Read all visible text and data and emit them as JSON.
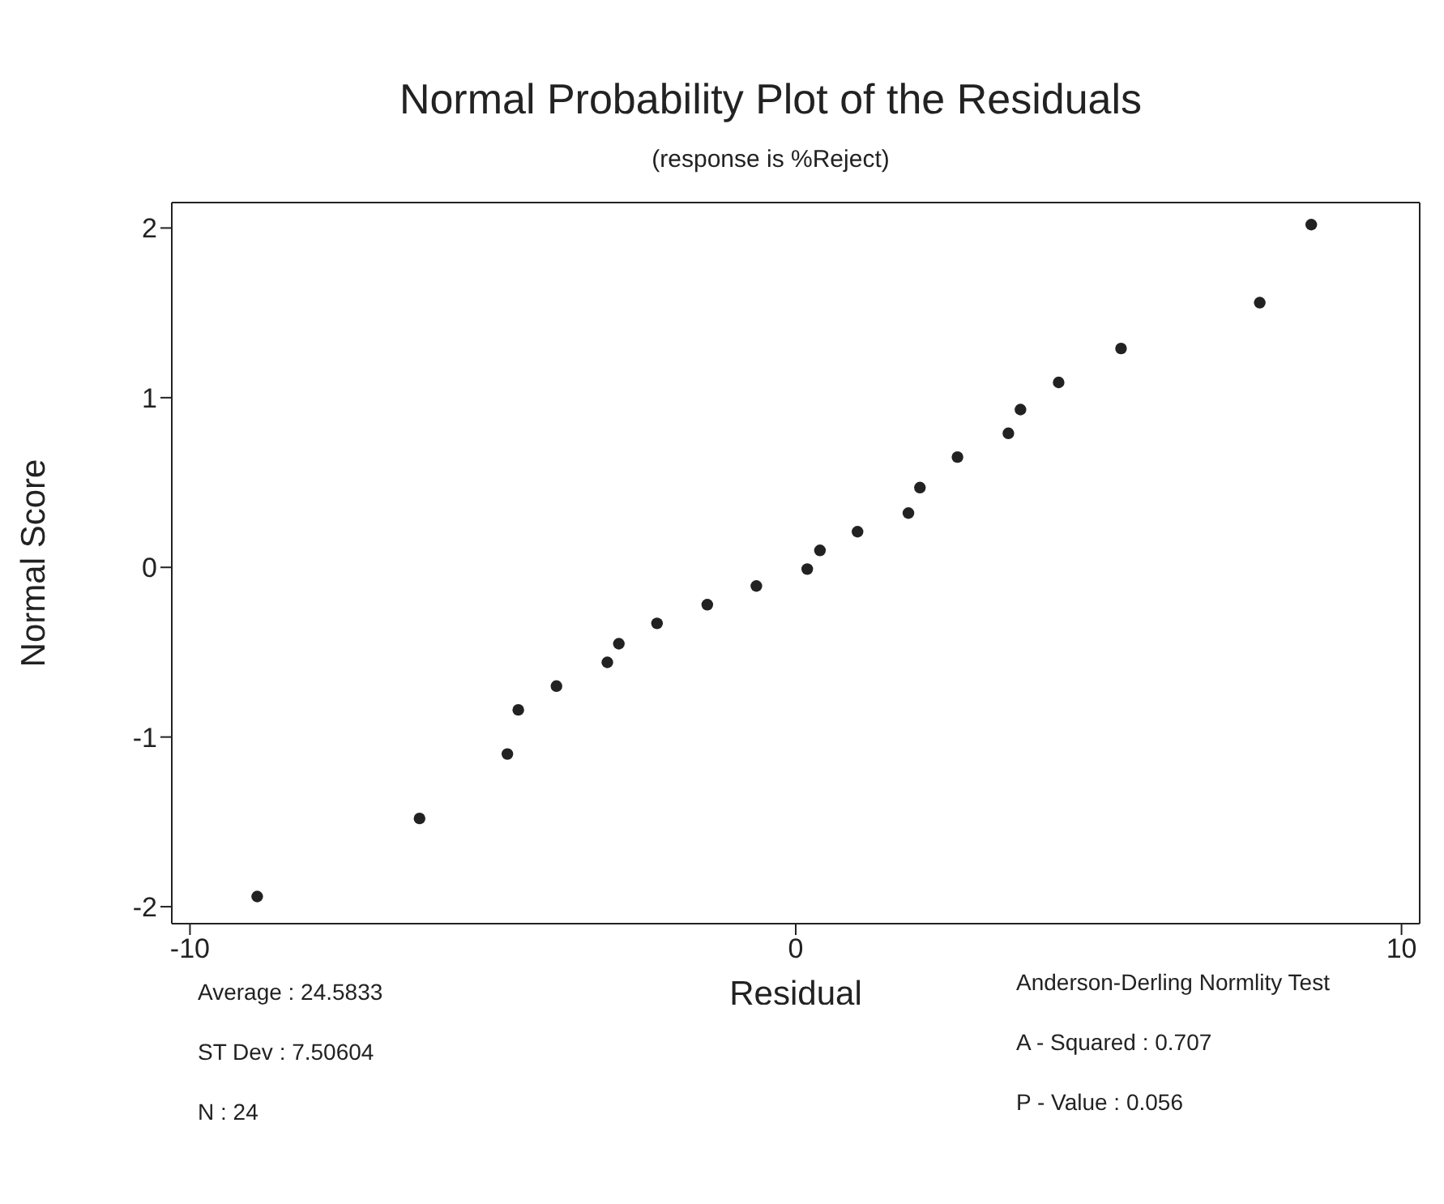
{
  "chart_data": {
    "type": "scatter",
    "title": "Normal Probability Plot of the Residuals",
    "subtitle": "(response is %Reject)",
    "xlabel": "Residual",
    "ylabel": "Normal Score",
    "x": [
      -8.89,
      -6.21,
      -4.76,
      -4.58,
      -3.95,
      -3.11,
      -2.92,
      -2.29,
      -1.46,
      -0.65,
      0.19,
      0.4,
      1.02,
      1.86,
      2.05,
      2.67,
      3.51,
      3.71,
      4.34,
      5.37,
      7.66,
      8.51
    ],
    "values": [
      -1.94,
      -1.48,
      -1.1,
      -0.84,
      -0.7,
      -0.56,
      -0.45,
      -0.33,
      -0.22,
      -0.11,
      -0.01,
      0.1,
      0.21,
      0.32,
      0.47,
      0.65,
      0.79,
      0.93,
      1.09,
      1.29,
      1.56,
      2.02
    ],
    "color": "#222222",
    "marker": "circle",
    "xlim": [
      -10.3,
      10.3
    ],
    "ylim": [
      -2.1,
      2.15
    ],
    "xticks": [
      -10,
      0,
      10
    ],
    "yticks": [
      -2,
      -1,
      0,
      1,
      2
    ],
    "grid": false,
    "legend": false,
    "annotations": [
      "Average : 24.5833",
      "ST Dev : 7.50604",
      "N : 24",
      "Anderson-Derling Normlity Test",
      "A - Squared : 0.707",
      "P - Value : 0.056"
    ]
  }
}
